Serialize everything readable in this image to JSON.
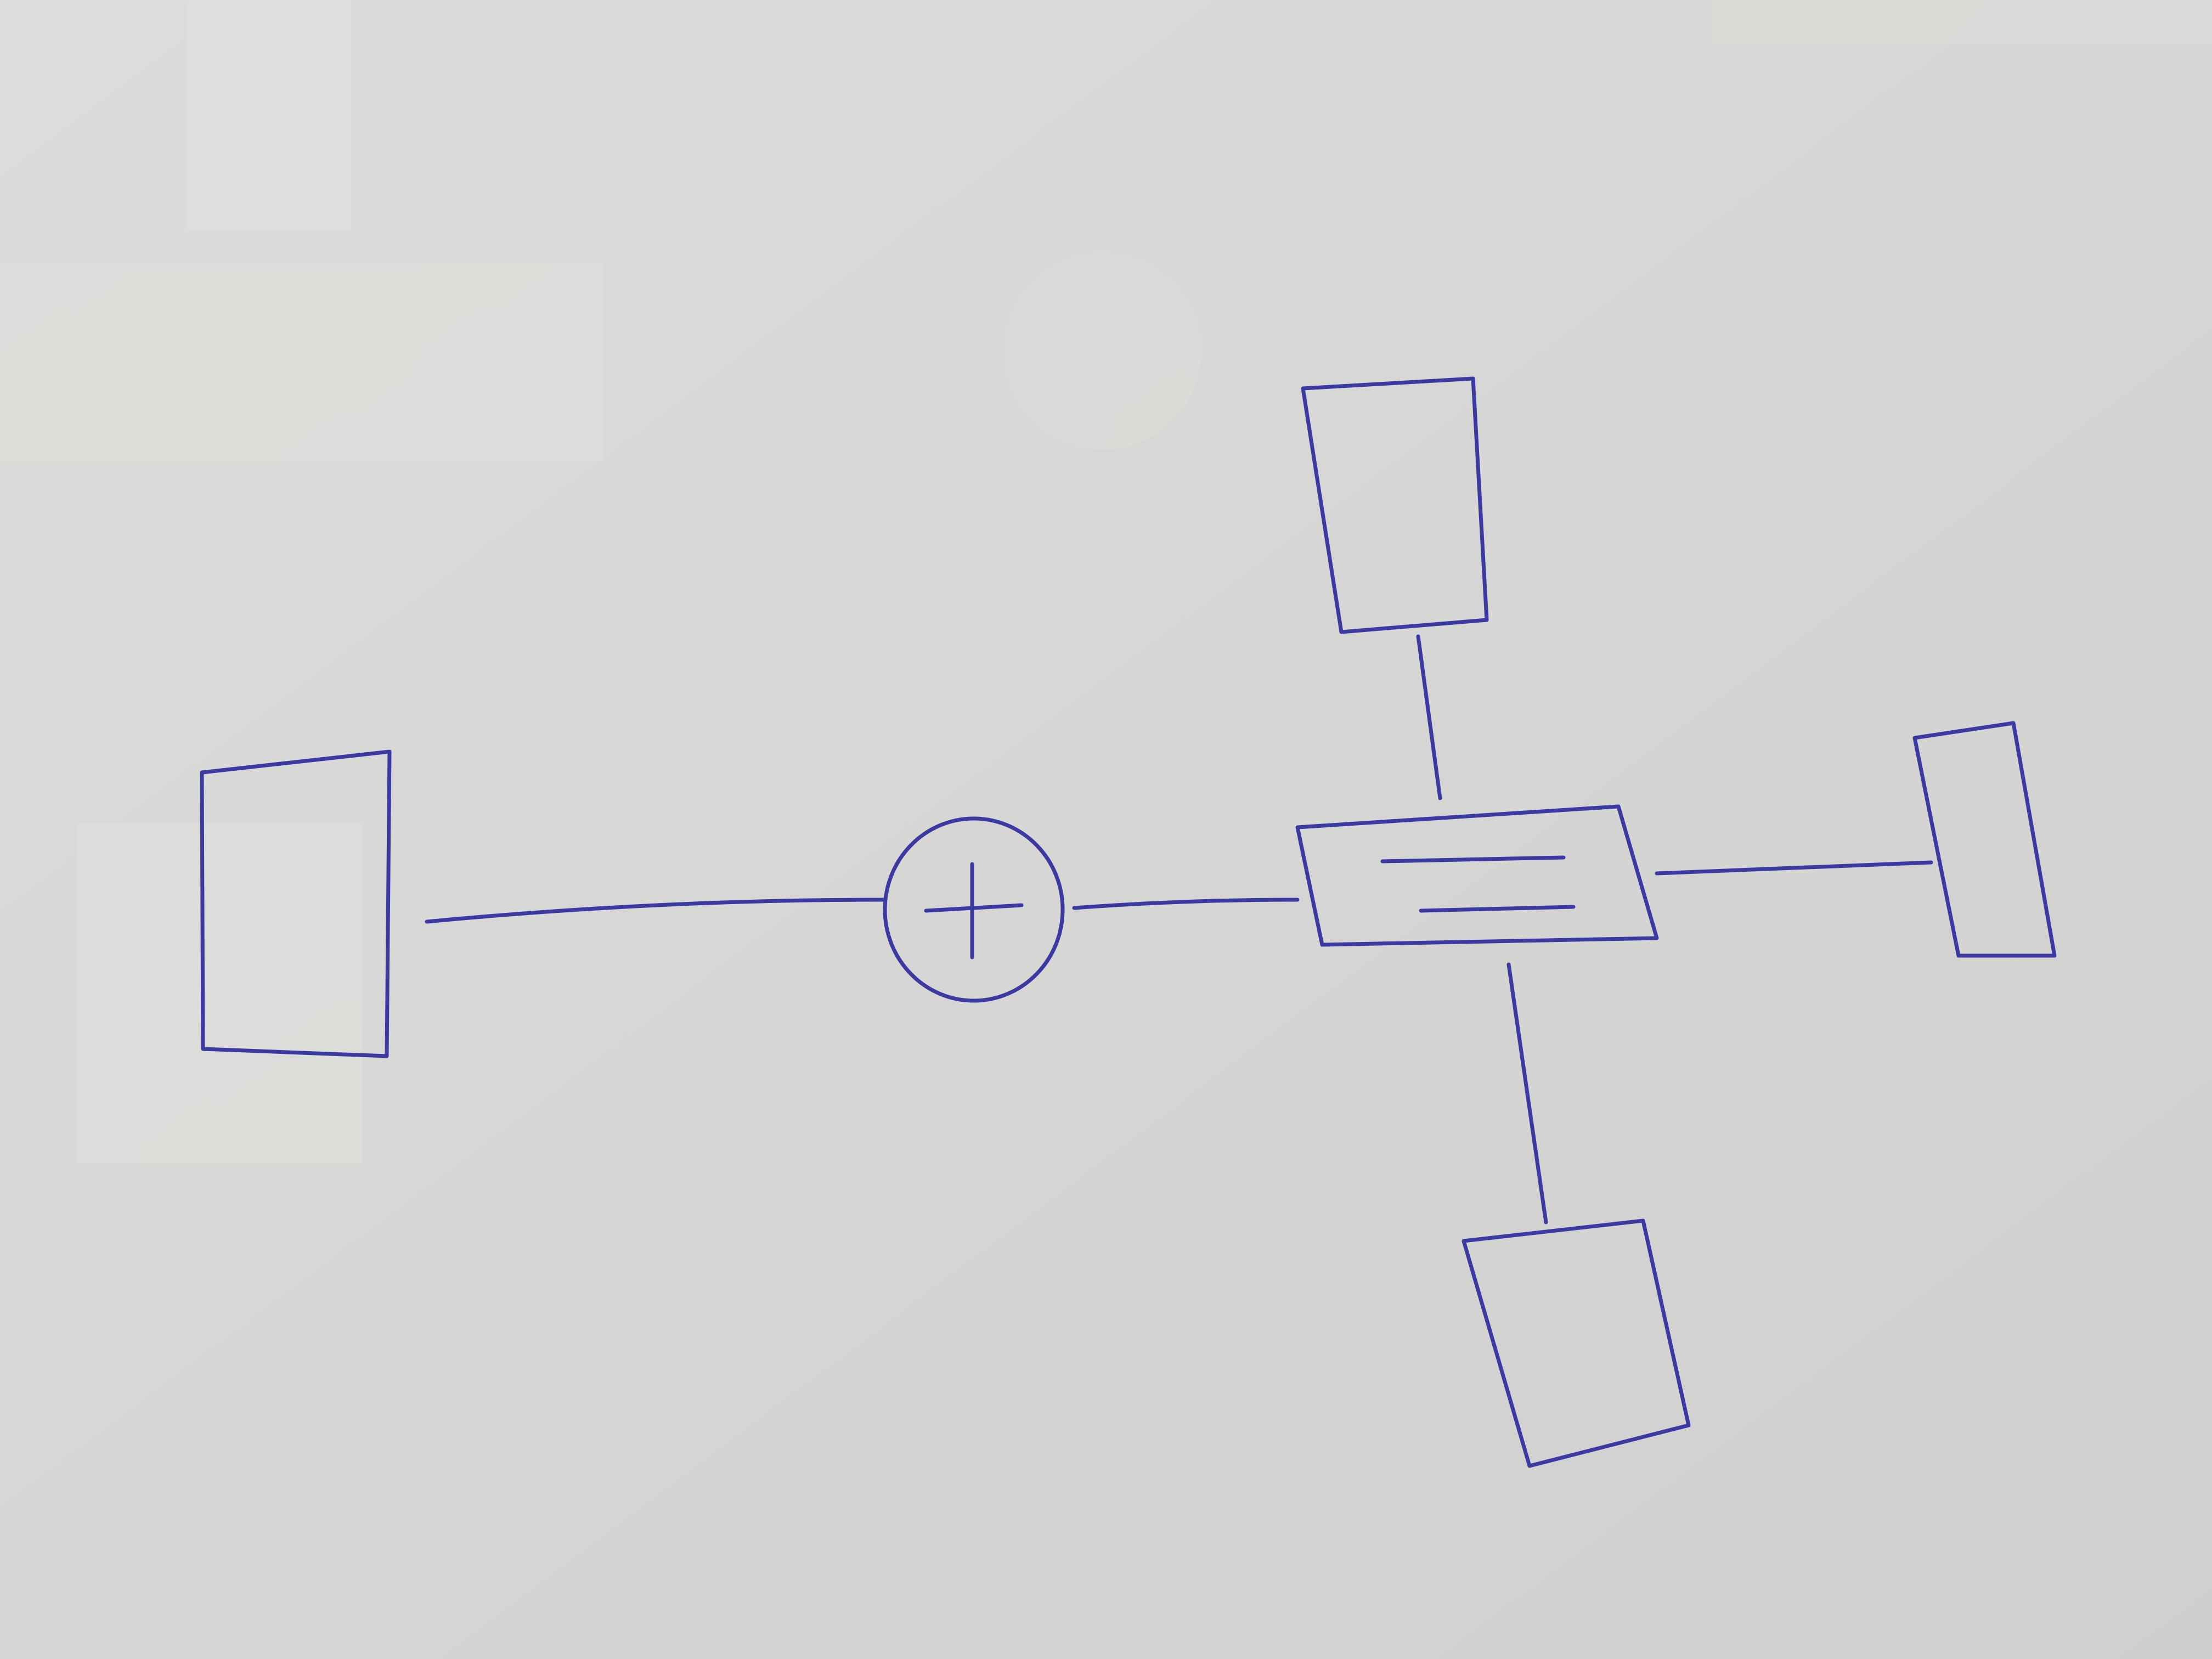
{
  "diagram": {
    "nodes": [
      {
        "id": "box-left",
        "shape": "rectangle"
      },
      {
        "id": "sum-junction",
        "shape": "circle",
        "symbol": "+"
      },
      {
        "id": "hub",
        "shape": "rectangle",
        "symbol": "="
      },
      {
        "id": "box-top",
        "shape": "rectangle"
      },
      {
        "id": "box-right",
        "shape": "rectangle"
      },
      {
        "id": "box-bottom",
        "shape": "rectangle"
      }
    ],
    "edges": [
      {
        "from": "box-left",
        "to": "sum-junction"
      },
      {
        "from": "sum-junction",
        "to": "hub"
      },
      {
        "from": "hub",
        "to": "box-top"
      },
      {
        "from": "hub",
        "to": "box-right"
      },
      {
        "from": "hub",
        "to": "box-bottom"
      }
    ]
  },
  "colors": {
    "paper": "#d8d8d6",
    "paper_light": "#e4e4e2",
    "ink": "#3a3aa2"
  }
}
